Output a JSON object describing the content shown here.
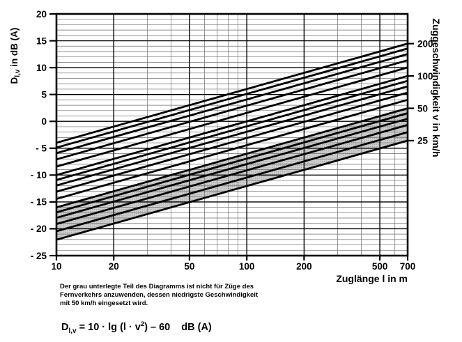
{
  "chart_data": {
    "type": "line",
    "title": "",
    "x_scale": "log",
    "xlim": [
      10,
      700
    ],
    "ylim": [
      -25,
      20
    ],
    "grid": "on",
    "xlabel": "Zuglänge l in m",
    "ylabel": "D l,v in dB (A)",
    "ylabel_parts": {
      "main": "D",
      "sub": "l,v",
      "rest": " in dB (A)"
    },
    "right_axis_title": "Zuggeschwindigkeit v in km/h",
    "x_ticks": [
      {
        "value": 10,
        "label": "10"
      },
      {
        "value": 20,
        "label": "20"
      },
      {
        "value": 50,
        "label": "50"
      },
      {
        "value": 100,
        "label": "100"
      },
      {
        "value": 200,
        "label": "200"
      },
      {
        "value": 500,
        "label": "500"
      },
      {
        "value": 700,
        "label": "700"
      }
    ],
    "x_minor_gridlines": [
      30,
      40,
      60,
      70,
      80,
      90,
      300,
      400,
      600
    ],
    "y_ticks": [
      {
        "value": 20,
        "label": "20"
      },
      {
        "value": 15,
        "label": "15"
      },
      {
        "value": 10,
        "label": "10"
      },
      {
        "value": 5,
        "label": "5"
      },
      {
        "value": 0,
        "label": "0"
      },
      {
        "value": -5,
        "label": "- 5"
      },
      {
        "value": -10,
        "label": "- 10"
      },
      {
        "value": -15,
        "label": "- 15"
      },
      {
        "value": -20,
        "label": "- 20"
      },
      {
        "value": -25,
        "label": "- 25"
      }
    ],
    "y_minor_step": 1,
    "series_meaning": "speed lines v in km/h, D = 10*lg(l*v^2) - 60, endpoints at l=10 m and l=700 m",
    "series": [
      {
        "v": 25,
        "d_at_10m": -22.04,
        "d_at_700m": -3.59
      },
      {
        "v": 30,
        "d_at_10m": -20.46,
        "d_at_700m": -2.01
      },
      {
        "v": 35,
        "d_at_10m": -19.12,
        "d_at_700m": -0.67
      },
      {
        "v": 40,
        "d_at_10m": -17.96,
        "d_at_700m": 0.49
      },
      {
        "v": 45,
        "d_at_10m": -16.94,
        "d_at_700m": 1.52
      },
      {
        "v": 50,
        "d_at_10m": -16.02,
        "d_at_700m": 2.43
      },
      {
        "v": 60,
        "d_at_10m": -14.44,
        "d_at_700m": 4.01
      },
      {
        "v": 70,
        "d_at_10m": -13.1,
        "d_at_700m": 5.35
      },
      {
        "v": 80,
        "d_at_10m": -11.94,
        "d_at_700m": 6.51
      },
      {
        "v": 90,
        "d_at_10m": -10.92,
        "d_at_700m": 7.54
      },
      {
        "v": 100,
        "d_at_10m": -10.0,
        "d_at_700m": 8.45
      },
      {
        "v": 120,
        "d_at_10m": -8.42,
        "d_at_700m": 10.03
      },
      {
        "v": 140,
        "d_at_10m": -7.08,
        "d_at_700m": 11.37
      },
      {
        "v": 160,
        "d_at_10m": -5.92,
        "d_at_700m": 12.53
      },
      {
        "v": 180,
        "d_at_10m": -4.89,
        "d_at_700m": 13.56
      },
      {
        "v": 200,
        "d_at_10m": -3.98,
        "d_at_700m": 14.47
      }
    ],
    "right_axis_speed_labels": [
      {
        "v": 200,
        "label": "200"
      },
      {
        "v": 100,
        "label": "100"
      },
      {
        "v": 50,
        "label": "50"
      },
      {
        "v": 25,
        "label": "25"
      }
    ],
    "shaded_speed_range": [
      25,
      50
    ],
    "shaded_color": "#c9c9c9",
    "line_color": "#000000",
    "legend_position": "right-axis-labels"
  },
  "footnote": {
    "lines": [
      "Der grau unterlegte Teil des Diagramms ist nicht für Züge des",
      "Fernverkehrs anzuwenden, dessen niedrigste Geschwindigkeit",
      "mit 50 km/h eingesetzt wird."
    ]
  },
  "formula": {
    "parts": {
      "d": "D",
      "d_sub": "l,v",
      "mid": " = 10 · lg (l · v",
      "sup": "2",
      "end": ") – 60",
      "unit": "dB (A)"
    }
  }
}
